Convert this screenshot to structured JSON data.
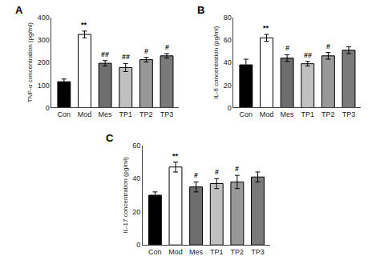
{
  "chart_data": [
    {
      "type": "bar",
      "title": "A",
      "ylabel": "TNF-α concentration (pg/ml)",
      "categories": [
        "Con",
        "Mod",
        "Mes",
        "TP1",
        "TP2",
        "TP3"
      ],
      "values": [
        115,
        325,
        197,
        178,
        213,
        230
      ],
      "errors": [
        12,
        15,
        12,
        18,
        10,
        10
      ],
      "colors": [
        "#000000",
        "#ffffff",
        "#6e6e6e",
        "#c0c0c0",
        "#989898",
        "#7a7a7a"
      ],
      "annotations": [
        {
          "category": "Mod",
          "text": "**"
        },
        {
          "category": "Mes",
          "text": "##"
        },
        {
          "category": "TP1",
          "text": "##"
        },
        {
          "category": "TP2",
          "text": "#"
        },
        {
          "category": "TP3",
          "text": "#"
        }
      ],
      "ylim": [
        0,
        400
      ],
      "yticks": [
        0,
        100,
        200,
        300,
        400
      ],
      "grid": false
    },
    {
      "type": "bar",
      "title": "B",
      "ylabel": "IL-6 concentration (pg/ml)",
      "categories": [
        "Con",
        "Mod",
        "Mes",
        "TP1",
        "TP2",
        "TP3"
      ],
      "values": [
        38,
        62,
        44,
        39,
        46,
        51
      ],
      "errors": [
        5,
        3,
        3,
        2,
        3,
        3
      ],
      "colors": [
        "#000000",
        "#ffffff",
        "#6e6e6e",
        "#c0c0c0",
        "#989898",
        "#7a7a7a"
      ],
      "annotations": [
        {
          "category": "Mod",
          "text": "**"
        },
        {
          "category": "Mes",
          "text": "#"
        },
        {
          "category": "TP1",
          "text": "##"
        },
        {
          "category": "TP2",
          "text": "#"
        }
      ],
      "ylim": [
        0,
        80
      ],
      "yticks": [
        0,
        20,
        40,
        60,
        80
      ],
      "grid": false
    },
    {
      "type": "bar",
      "title": "C",
      "ylabel": "IL-17 concentration (pg/ml)",
      "categories": [
        "Con",
        "Mod",
        "Mes",
        "TP1",
        "TP2",
        "TP3"
      ],
      "values": [
        30,
        47,
        35,
        37,
        38,
        41
      ],
      "errors": [
        2,
        3,
        3,
        3,
        4,
        3
      ],
      "colors": [
        "#000000",
        "#ffffff",
        "#6e6e6e",
        "#c0c0c0",
        "#989898",
        "#7a7a7a"
      ],
      "annotations": [
        {
          "category": "Mod",
          "text": "**"
        },
        {
          "category": "Mes",
          "text": "#"
        },
        {
          "category": "TP1",
          "text": "#"
        },
        {
          "category": "TP2",
          "text": "#"
        }
      ],
      "ylim": [
        0,
        60
      ],
      "yticks": [
        0,
        20,
        40,
        60
      ],
      "grid": false
    }
  ]
}
